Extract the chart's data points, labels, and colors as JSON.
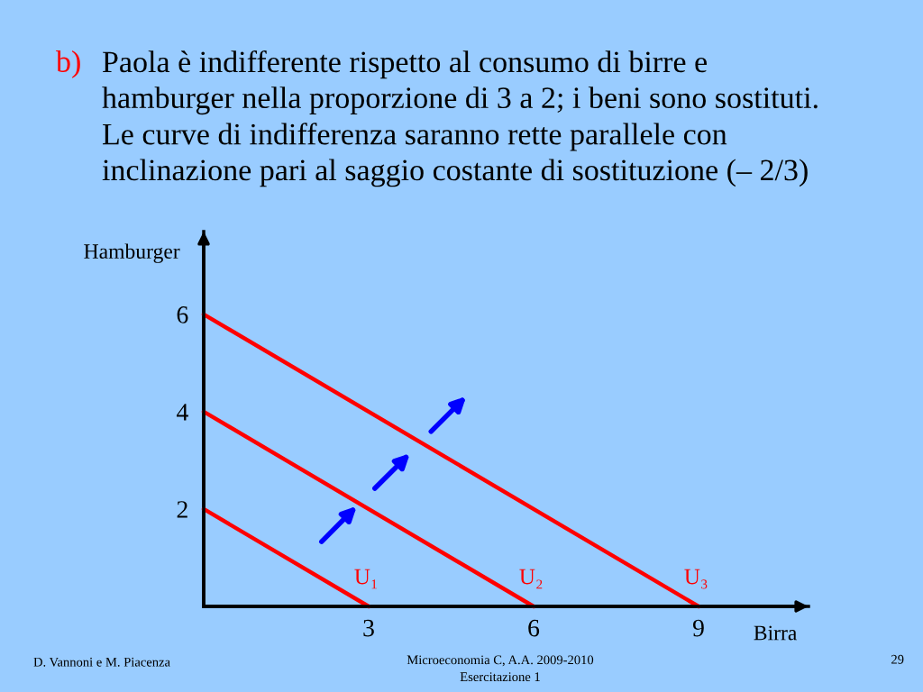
{
  "chart_data": {
    "type": "line",
    "title": "b) Paola è indifferente rispetto al consumo di birre e\nhamburger nella proporzione di 3 a 2; i beni sono sostituti.\nLe curve di indifferenza saranno rette parallele con\ninclinazione pari al saggio costante di sostituzione (– 2/3)",
    "xlabel": "Birra",
    "ylabel": "Hamburger",
    "series": [
      {
        "name": "U₁",
        "color": "#ff0000",
        "x": [
          0,
          3
        ],
        "values": [
          2,
          0
        ]
      },
      {
        "name": "U₂",
        "color": "#ff0000",
        "x": [
          0,
          6
        ],
        "values": [
          4,
          0
        ]
      },
      {
        "name": "U₃",
        "color": "#ff0000",
        "x": [
          0,
          9
        ],
        "values": [
          6,
          0
        ]
      }
    ],
    "xlim": [
      0,
      11
    ],
    "ylim": [
      0,
      7.7
    ],
    "xticks": [
      3,
      6,
      9
    ],
    "yticks": [
      2,
      4,
      6
    ],
    "grid": false,
    "legend": false,
    "marker": "none",
    "line_style": "solid",
    "annotations": [
      "D. Vannoni e M. Piacenza",
      "Microeconomia C, A.A. 2009-2010\nEsercitazione 1",
      "29"
    ]
  }
}
